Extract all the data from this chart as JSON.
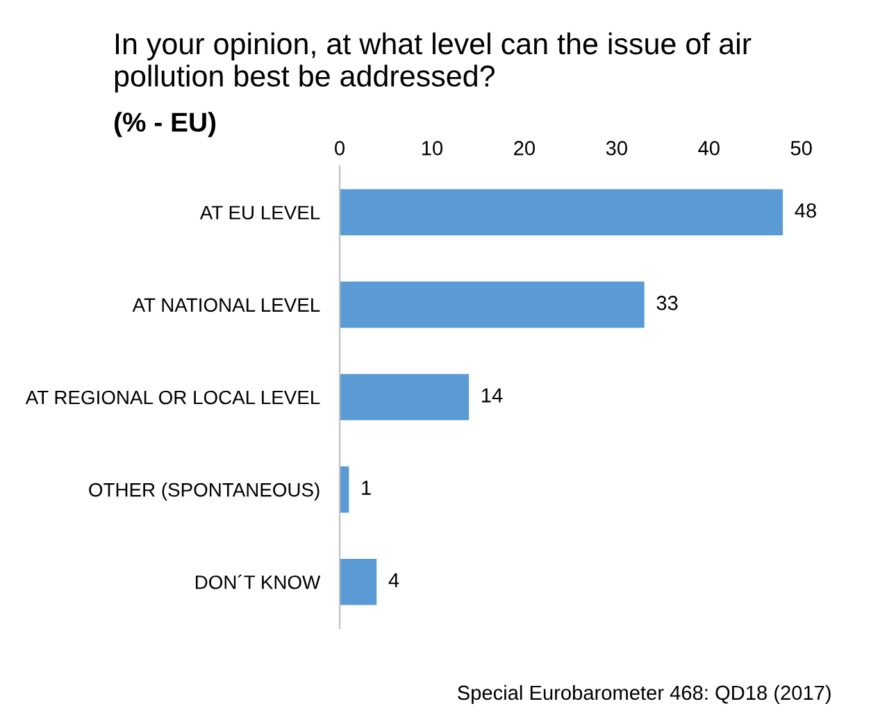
{
  "chart_data": {
    "type": "bar",
    "orientation": "horizontal",
    "title": "In your opinion, at what level can the issue of air pollution best be addressed?",
    "subtitle": "(% - EU)",
    "categories": [
      "AT EU LEVEL",
      "AT NATIONAL LEVEL",
      "AT REGIONAL OR LOCAL LEVEL",
      "OTHER (SPONTANEOUS)",
      "DON´T KNOW"
    ],
    "values": [
      48,
      33,
      14,
      1,
      4
    ],
    "color": "#5b9bd5",
    "xlim": [
      0,
      50
    ],
    "xticks": [
      0,
      10,
      20,
      30,
      40,
      50
    ],
    "data_labels": true,
    "grid": false,
    "annotations": [
      "Special Eurobarometer 468: QD18 (2017)"
    ]
  }
}
